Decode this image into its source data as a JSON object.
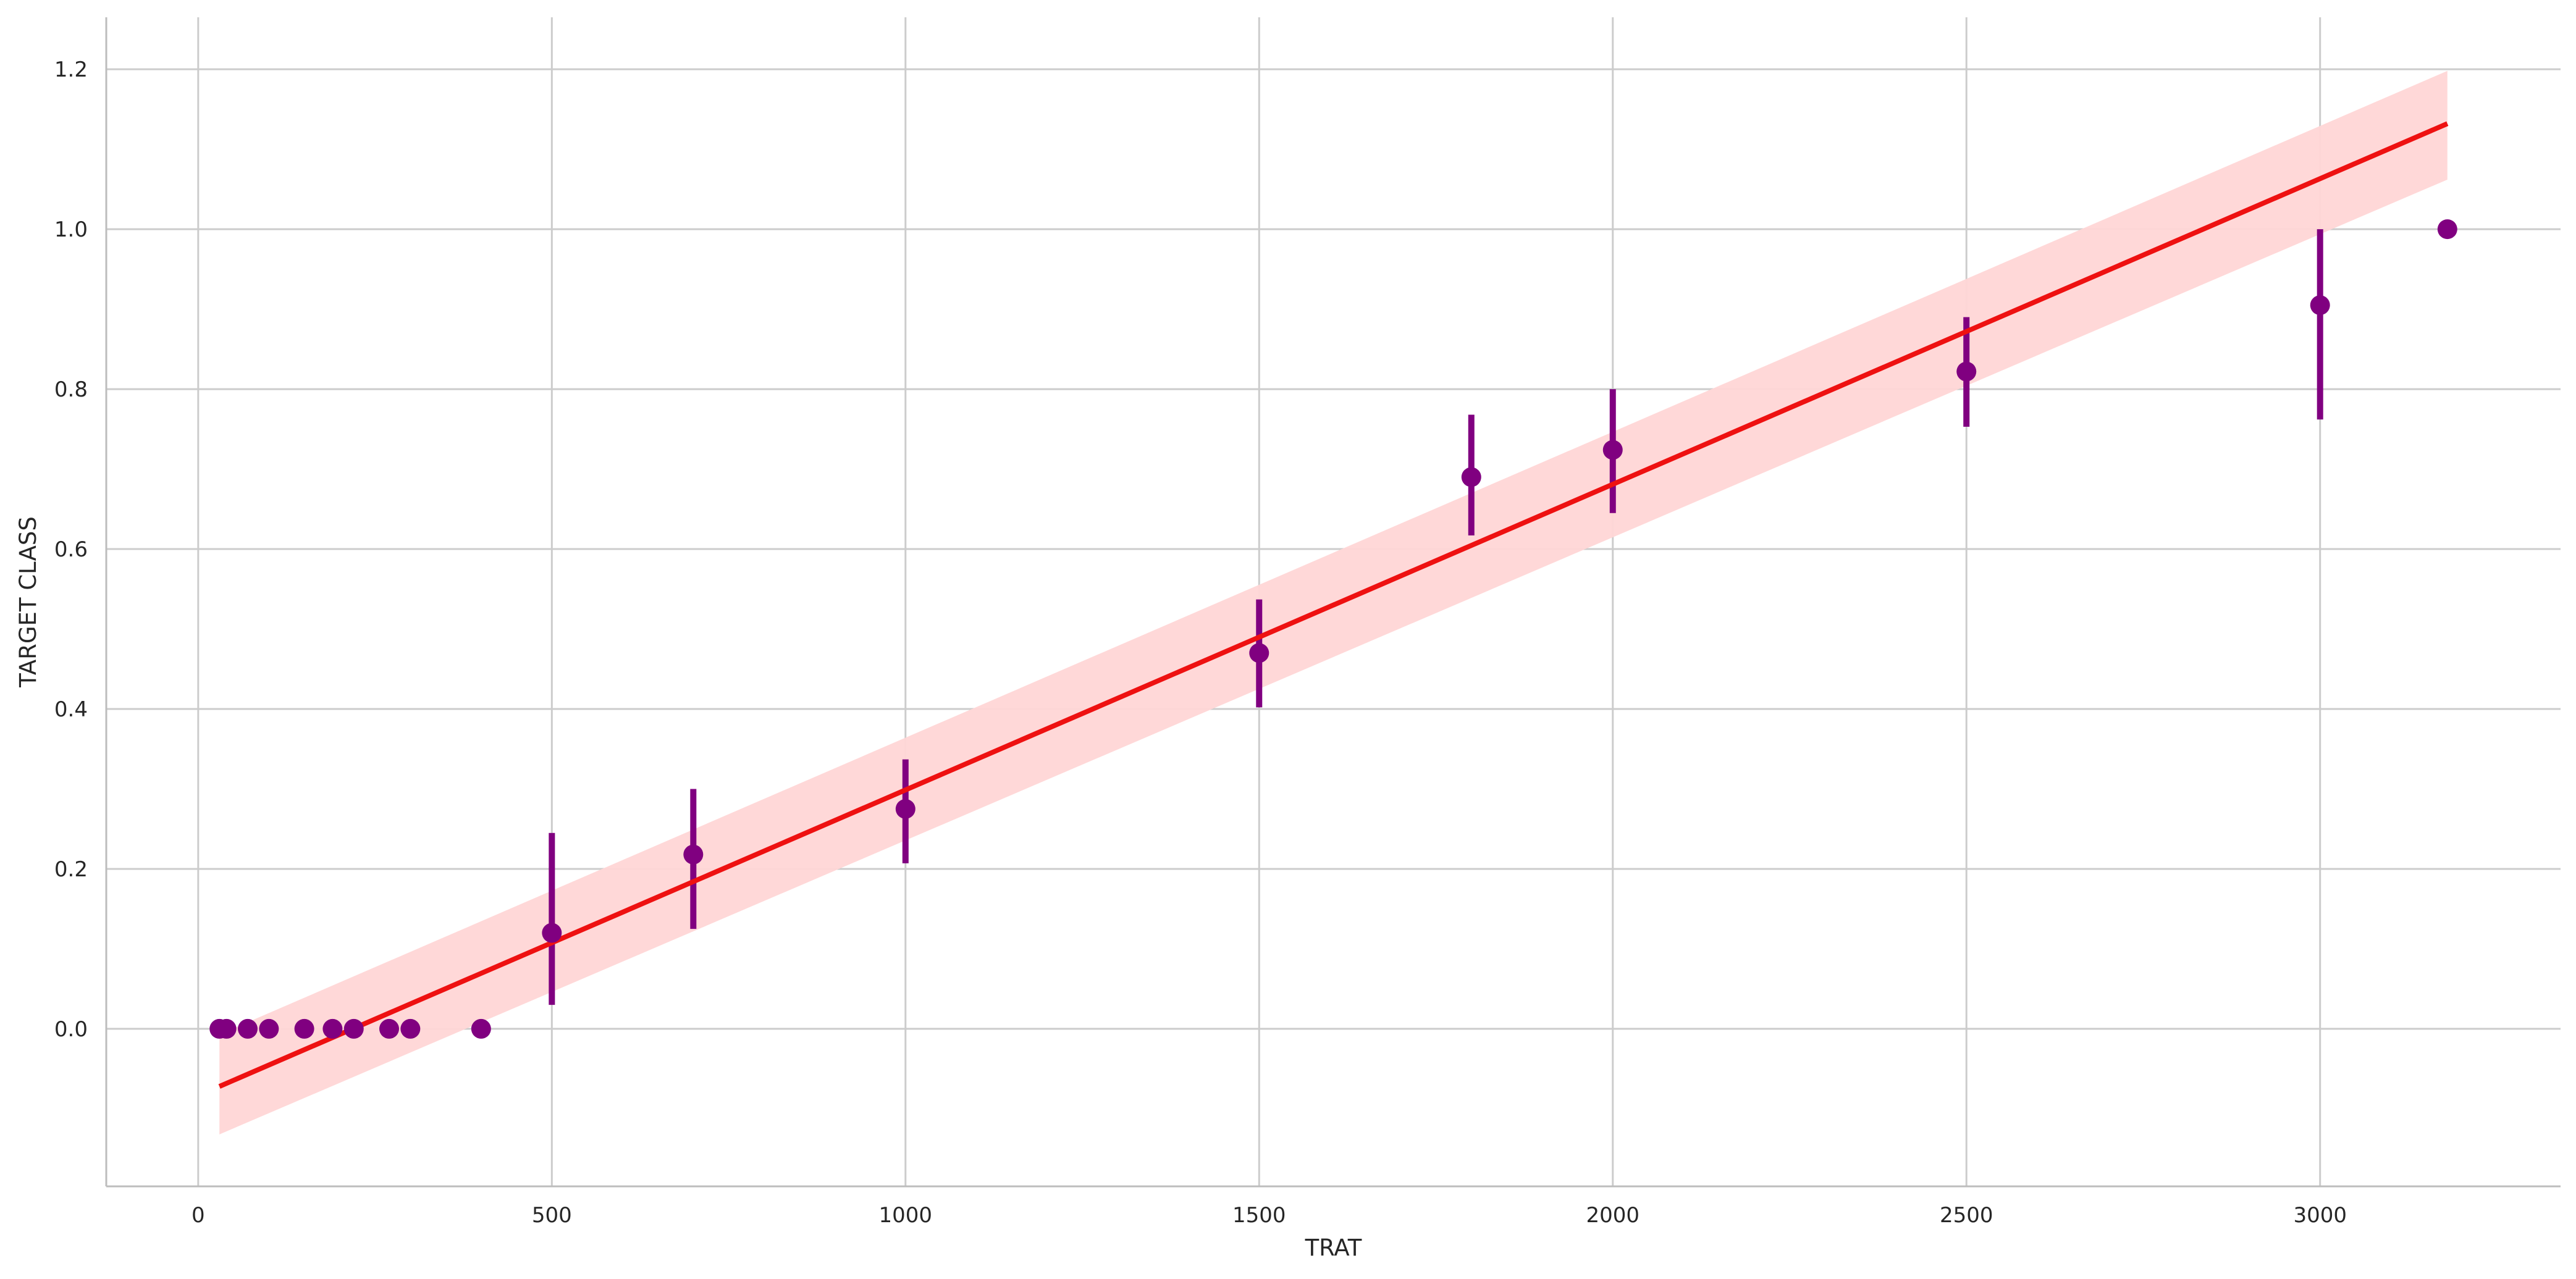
{
  "chart_data": {
    "type": "scatter",
    "title": "",
    "xlabel": "TRAT",
    "ylabel": "TARGET CLASS",
    "xlim": [
      -130,
      3340
    ],
    "ylim": [
      -0.197,
      1.265
    ],
    "xticks": [
      0,
      500,
      1000,
      1500,
      2000,
      2500,
      3000
    ],
    "yticks": [
      0.0,
      0.2,
      0.4,
      0.6,
      0.8,
      1.0,
      1.2
    ],
    "xtick_labels": [
      "0",
      "500",
      "1000",
      "1500",
      "2000",
      "2500",
      "3000"
    ],
    "ytick_labels": [
      "0.0",
      "0.2",
      "0.4",
      "0.6",
      "0.8",
      "1.0",
      "1.2"
    ],
    "grid": true,
    "points": [
      {
        "x": 30,
        "y": 0.0
      },
      {
        "x": 40,
        "y": 0.0
      },
      {
        "x": 70,
        "y": 0.0
      },
      {
        "x": 100,
        "y": 0.0
      },
      {
        "x": 150,
        "y": 0.0
      },
      {
        "x": 190,
        "y": 0.0
      },
      {
        "x": 220,
        "y": 0.0
      },
      {
        "x": 270,
        "y": 0.0
      },
      {
        "x": 300,
        "y": 0.0
      },
      {
        "x": 400,
        "y": 0.0
      },
      {
        "x": 500,
        "y": 0.12,
        "ci": [
          0.03,
          0.245
        ]
      },
      {
        "x": 700,
        "y": 0.218,
        "ci": [
          0.125,
          0.3
        ]
      },
      {
        "x": 1000,
        "y": 0.275,
        "ci": [
          0.207,
          0.337
        ]
      },
      {
        "x": 1500,
        "y": 0.47,
        "ci": [
          0.402,
          0.537
        ]
      },
      {
        "x": 1800,
        "y": 0.69,
        "ci": [
          0.617,
          0.768
        ]
      },
      {
        "x": 2000,
        "y": 0.724,
        "ci": [
          0.645,
          0.8
        ]
      },
      {
        "x": 2500,
        "y": 0.822,
        "ci": [
          0.753,
          0.89
        ]
      },
      {
        "x": 3000,
        "y": 0.905,
        "ci": [
          0.762,
          1.0
        ]
      },
      {
        "x": 3180,
        "y": 1.0
      }
    ],
    "regression": {
      "x": [
        30,
        3180
      ],
      "y": [
        -0.072,
        1.132
      ],
      "band_lower": [
        -0.132,
        1.062
      ],
      "band_upper": [
        -0.007,
        1.198
      ]
    },
    "colors": {
      "points": "#800080",
      "line": "#ee1111",
      "band": "#ffd6d6",
      "grid": "#cccccc",
      "spine": "#bdbdbd"
    }
  }
}
